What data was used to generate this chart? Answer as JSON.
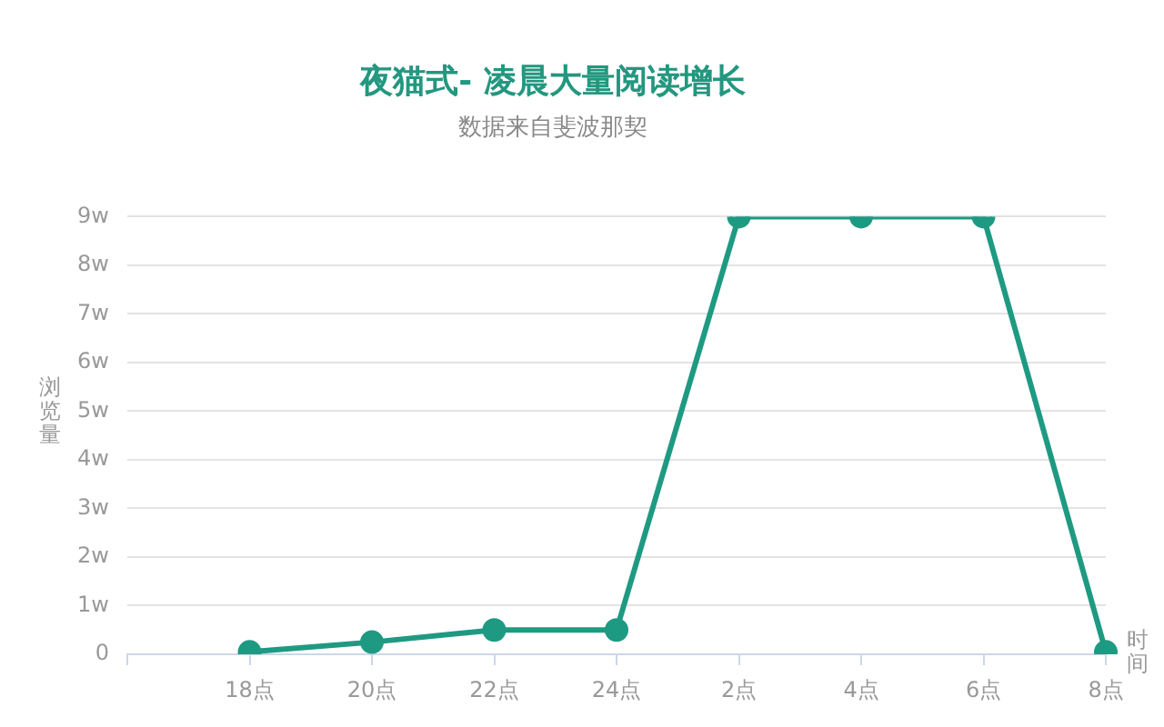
{
  "chart_data": {
    "type": "line",
    "title": "夜猫式- 凌晨大量阅读增长",
    "subtitle": "数据来自斐波那契",
    "xlabel": "时间",
    "ylabel": "浏览量",
    "categories": [
      null,
      "18点",
      "20点",
      "22点",
      "24点",
      "2点",
      "4点",
      "6点",
      "8点"
    ],
    "values": [
      null,
      0.05,
      0.25,
      0.5,
      0.5,
      9,
      9,
      9,
      0.05
    ],
    "color": "#1f9a82",
    "ylim": [
      0,
      9
    ],
    "yticks": [
      0,
      {
        "value": 1,
        "label": "1w"
      },
      {
        "value": 2,
        "label": "2w"
      },
      {
        "value": 3,
        "label": "3w"
      },
      {
        "value": 4,
        "label": "4w"
      },
      {
        "value": 5,
        "label": "5w"
      },
      {
        "value": 6,
        "label": "6w"
      },
      {
        "value": 7,
        "label": "7w"
      },
      {
        "value": 8,
        "label": "8w"
      },
      {
        "value": 9,
        "label": "9w"
      }
    ],
    "grid": "y",
    "marker": "circle",
    "line_style": "solid"
  }
}
